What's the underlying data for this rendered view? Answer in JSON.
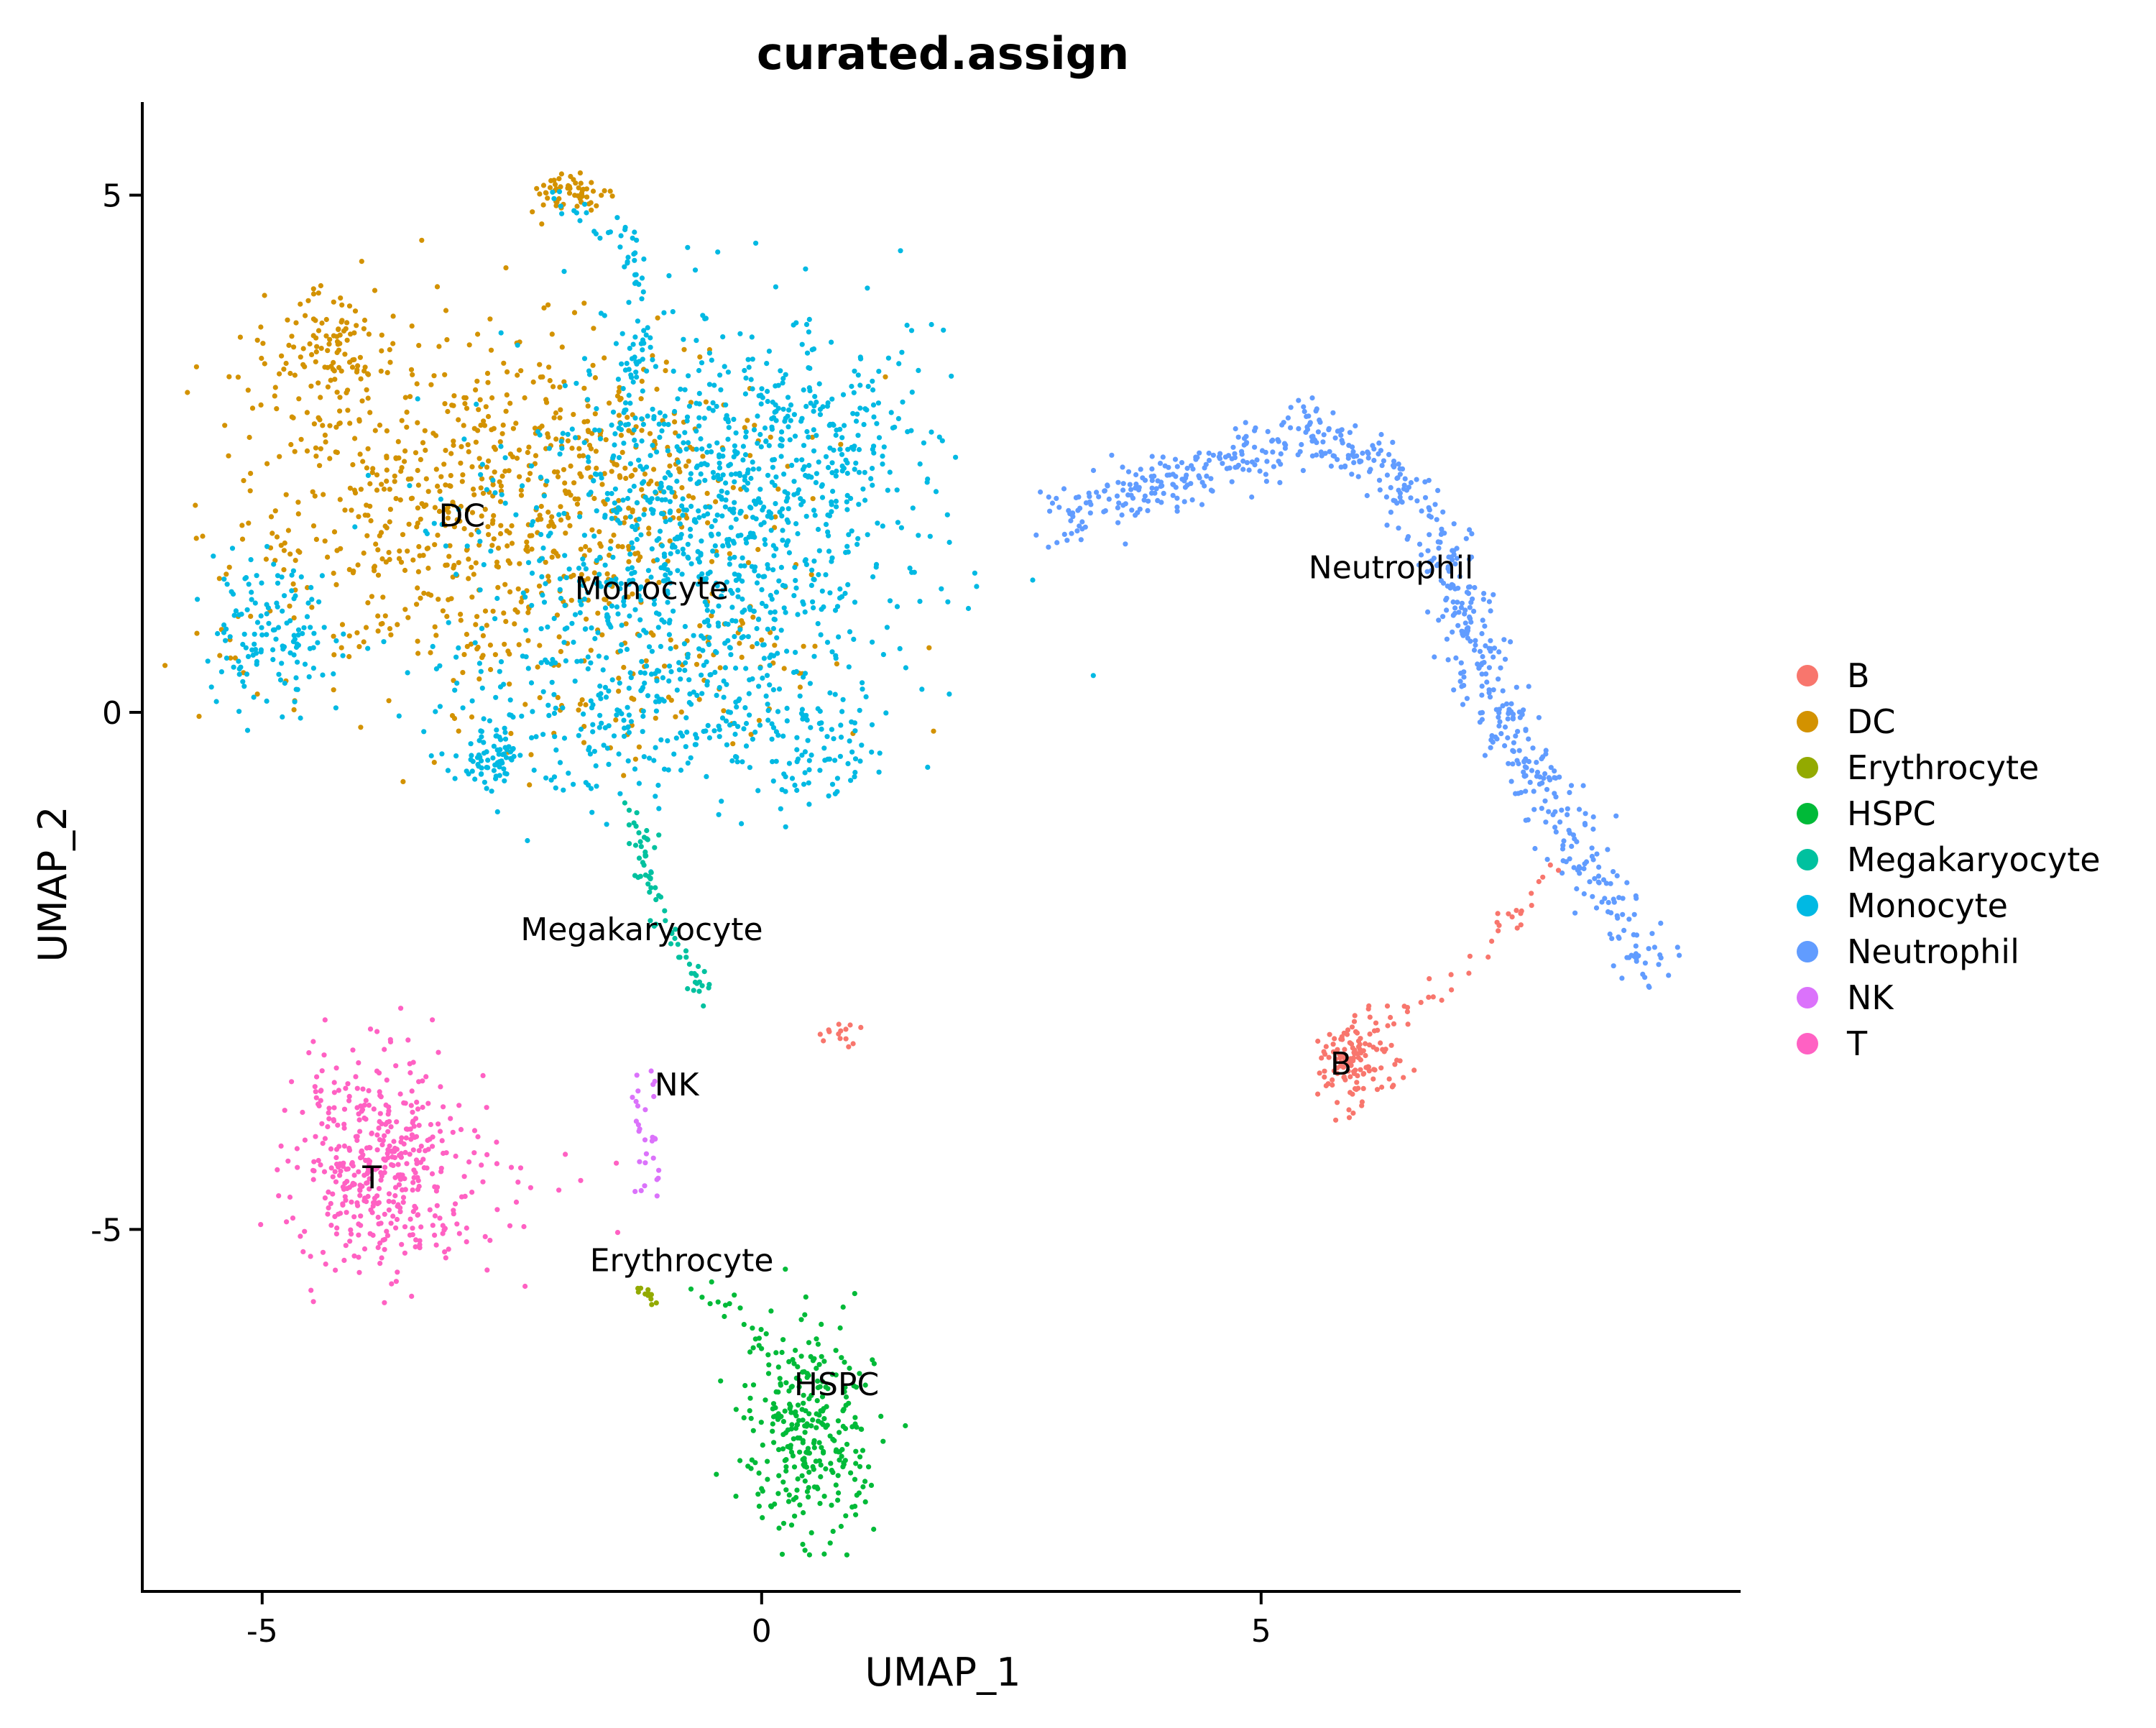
{
  "chart_data": {
    "type": "scatter",
    "title": "curated.assign",
    "xlabel": "UMAP_1",
    "ylabel": "UMAP_2",
    "xlim": [
      -6.2,
      9.8
    ],
    "ylim": [
      -8.5,
      5.9
    ],
    "x_ticks": [
      {
        "value": -5,
        "label": "-5"
      },
      {
        "value": 0,
        "label": "0"
      },
      {
        "value": 5,
        "label": "5"
      }
    ],
    "y_ticks": [
      {
        "value": 5,
        "label": "5"
      },
      {
        "value": 0,
        "label": "0"
      },
      {
        "value": -5,
        "label": "-5"
      }
    ],
    "grid": false,
    "legend_position": "right",
    "series": [
      {
        "name": "B",
        "color": "#F8766D",
        "centroid": [
          5.9,
          -3.4
        ],
        "n": 180
      },
      {
        "name": "DC",
        "color": "#D39200",
        "centroid": [
          -3.3,
          1.9
        ],
        "n": 1100
      },
      {
        "name": "Erythrocyte",
        "color": "#93AA00",
        "centroid": [
          -1.1,
          -5.7
        ],
        "n": 12
      },
      {
        "name": "HSPC",
        "color": "#00BA38",
        "centroid": [
          0.5,
          -6.9
        ],
        "n": 320
      },
      {
        "name": "Megakaryocyte",
        "color": "#00C19F",
        "centroid": [
          -1.0,
          -2.1
        ],
        "n": 70
      },
      {
        "name": "Monocyte",
        "color": "#00B9E3",
        "centroid": [
          -1.1,
          1.2
        ],
        "n": 1700
      },
      {
        "name": "Neutrophil",
        "color": "#619CFF",
        "centroid": [
          6.6,
          1.3
        ],
        "n": 700
      },
      {
        "name": "NK",
        "color": "#DB72FB",
        "centroid": [
          -1.2,
          -3.8
        ],
        "n": 30
      },
      {
        "name": "T",
        "color": "#FF61C3",
        "centroid": [
          -3.8,
          -4.4
        ],
        "n": 460
      }
    ],
    "cluster_labels": [
      {
        "text": "DC",
        "x": -3.0,
        "y": 1.9
      },
      {
        "text": "Monocyte",
        "x": -1.1,
        "y": 1.2
      },
      {
        "text": "Neutrophil",
        "x": 6.3,
        "y": 1.4
      },
      {
        "text": "Megakaryocyte",
        "x": -1.2,
        "y": -2.1
      },
      {
        "text": "NK",
        "x": -0.85,
        "y": -3.6
      },
      {
        "text": "B",
        "x": 5.8,
        "y": -3.4
      },
      {
        "text": "T",
        "x": -3.9,
        "y": -4.5
      },
      {
        "text": "Erythrocyte",
        "x": -0.8,
        "y": -5.3
      },
      {
        "text": "HSPC",
        "x": 0.75,
        "y": -6.5
      }
    ]
  }
}
